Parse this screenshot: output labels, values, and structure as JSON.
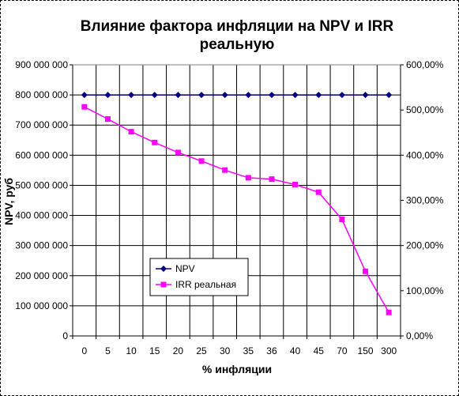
{
  "chart_data": {
    "type": "line",
    "title_lines": [
      "Влияние фактора инфляции на NPV и IRR",
      "реальную"
    ],
    "xlabel": "% инфляции",
    "ylabel": "NPV, руб",
    "categories": [
      "0",
      "5",
      "10",
      "15",
      "20",
      "25",
      "30",
      "35",
      "36",
      "40",
      "45",
      "70",
      "150",
      "300"
    ],
    "ylim_left": [
      0,
      900000000
    ],
    "ylim_right": [
      0,
      6
    ],
    "y_ticks_left": [
      "0",
      "100 000 000",
      "200 000 000",
      "300 000 000",
      "400 000 000",
      "500 000 000",
      "600 000 000",
      "700 000 000",
      "800 000 000",
      "900 000 000"
    ],
    "y_ticks_right": [
      "0,00%",
      "100,00%",
      "200,00%",
      "300,00%",
      "400,00%",
      "500,00%",
      "600,00%"
    ],
    "grid": true,
    "legend_position": "lower-left",
    "series": [
      {
        "name": "NPV",
        "axis": "left",
        "color": "#000080",
        "marker": "diamond",
        "values": [
          800000000,
          800000000,
          800000000,
          800000000,
          800000000,
          800000000,
          800000000,
          800000000,
          800000000,
          800000000,
          800000000,
          800000000,
          800000000,
          800000000
        ]
      },
      {
        "name": "IRR реальная",
        "axis": "right",
        "color": "#ff00ff",
        "marker": "square",
        "values": [
          5.07,
          4.8,
          4.52,
          4.28,
          4.06,
          3.87,
          3.67,
          3.5,
          3.47,
          3.35,
          3.18,
          2.58,
          1.43,
          0.52
        ]
      }
    ]
  }
}
